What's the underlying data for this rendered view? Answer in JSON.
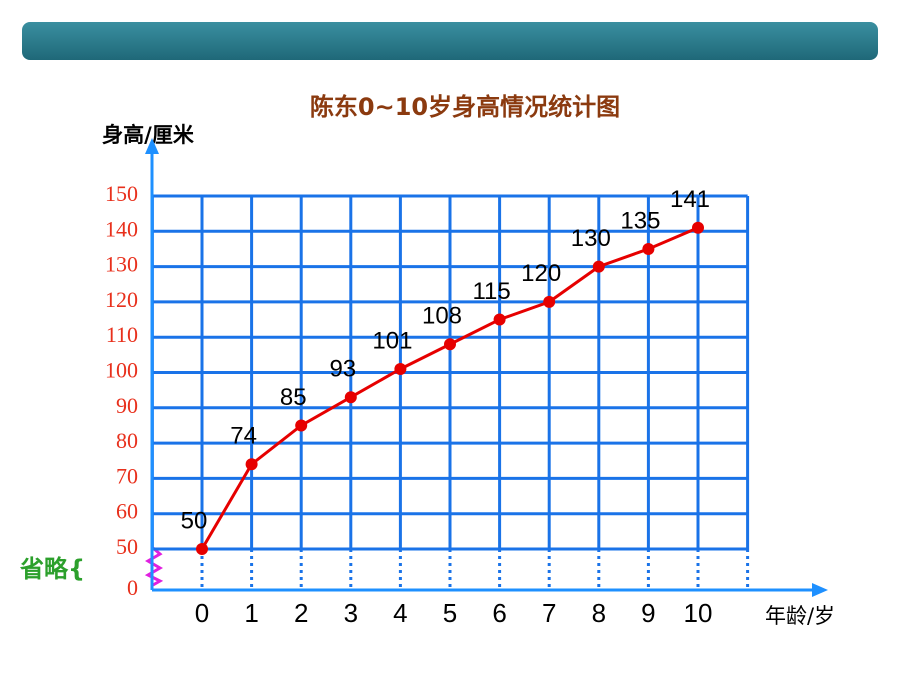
{
  "chart_data": {
    "type": "line",
    "title": "陈东0~10岁身高情况统计图",
    "y_label": "身高/厘米",
    "x_label": "年龄/岁",
    "annotation": "省略{",
    "x": [
      0,
      1,
      2,
      3,
      4,
      5,
      6,
      7,
      8,
      9,
      10
    ],
    "series": [
      {
        "name": "身高",
        "color": "#e60000",
        "values": [
          50,
          74,
          85,
          93,
          101,
          108,
          115,
          120,
          130,
          135,
          141
        ]
      }
    ],
    "ylim": [
      0,
      150
    ],
    "y_break": [
      0,
      50
    ],
    "yticks": [
      0,
      50,
      60,
      70,
      80,
      90,
      100,
      110,
      120,
      130,
      140,
      150
    ],
    "xlim": [
      -1,
      11
    ],
    "grid": true
  }
}
